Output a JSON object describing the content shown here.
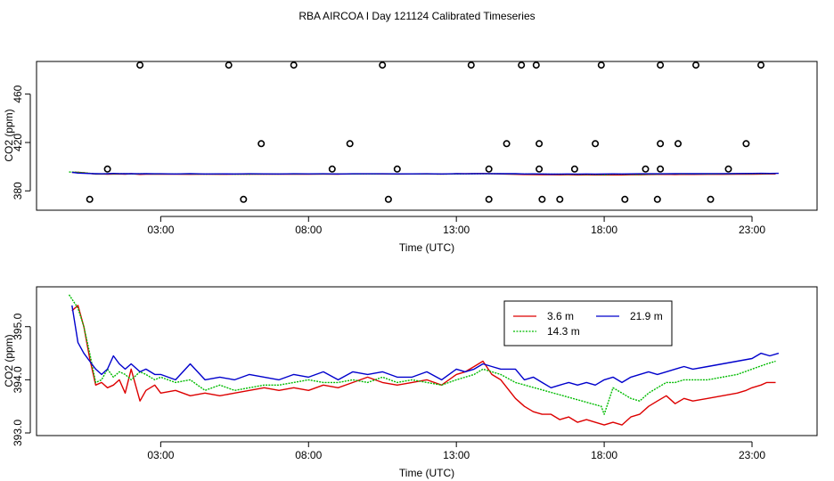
{
  "figure_title": "RBA AIRCOA I  Day 121124  Calibrated Timeseries",
  "colors": {
    "red": "#dd0000",
    "green": "#00bb00",
    "blue": "#0000cc",
    "axis": "#000000"
  },
  "chart_data": [
    {
      "type": "scatter+line",
      "name": "top-panel",
      "title": "",
      "xlabel": "Time (UTC)",
      "ylabel": "CO2 (ppm)",
      "xlim": [
        -1.2,
        25.2
      ],
      "ylim": [
        364,
        487
      ],
      "x_ticks": [
        3,
        8,
        13,
        18,
        23
      ],
      "x_tick_labels": [
        "03:00",
        "08:00",
        "13:00",
        "18:00",
        "23:00"
      ],
      "y_ticks": [
        380,
        420,
        460
      ],
      "y_tick_labels": [
        "380",
        "420",
        "460"
      ],
      "points": {
        "name": "calibration standards",
        "x": [
          0.6,
          1.2,
          2.3,
          5.3,
          7.5,
          10.5,
          13.5,
          15.2,
          15.7,
          6.4,
          9.4,
          14.7,
          15.8,
          17.7,
          19.9,
          20.5,
          22.8,
          8.8,
          11.0,
          14.1,
          15.8,
          17.0,
          19.4,
          19.9,
          22.2,
          5.8,
          10.7,
          14.1,
          15.9,
          16.5,
          18.7,
          19.8,
          21.6,
          17.9,
          19.9,
          21.1,
          23.3
        ],
        "y": [
          373,
          398,
          484,
          484,
          484,
          484,
          484,
          484,
          484,
          419,
          419,
          419,
          419,
          419,
          419,
          419,
          419,
          398,
          398,
          398,
          398,
          398,
          398,
          398,
          398,
          373,
          373,
          373,
          373,
          373,
          373,
          373,
          373,
          484,
          484,
          484,
          484
        ]
      },
      "series_ref": "bottom-panel"
    },
    {
      "type": "line",
      "name": "bottom-panel",
      "title": "",
      "xlabel": "Time (UTC)",
      "ylabel": "CO2 (ppm)",
      "xlim": [
        -1.2,
        25.2
      ],
      "ylim": [
        392.95,
        395.75
      ],
      "x_ticks": [
        3,
        8,
        13,
        18,
        23
      ],
      "x_tick_labels": [
        "03:00",
        "08:00",
        "13:00",
        "18:00",
        "23:00"
      ],
      "y_ticks": [
        393.0,
        394.0,
        395.0
      ],
      "y_tick_labels": [
        "393.0",
        "394.0",
        "395.0"
      ],
      "legend": {
        "position": "top-right",
        "entries": [
          "3.6 m",
          "14.3 m",
          "21.9 m"
        ]
      },
      "series": [
        {
          "name": "3.6 m",
          "color": "red",
          "x": [
            0.0,
            0.2,
            0.4,
            0.6,
            0.8,
            1.0,
            1.2,
            1.4,
            1.6,
            1.8,
            2.0,
            2.3,
            2.5,
            2.8,
            3.0,
            3.5,
            4.0,
            4.5,
            5.0,
            5.5,
            6.0,
            6.5,
            7.0,
            7.5,
            8.0,
            8.5,
            9.0,
            9.5,
            10.0,
            10.5,
            11.0,
            11.5,
            12.0,
            12.5,
            13.0,
            13.3,
            13.6,
            13.9,
            14.2,
            14.5,
            15.0,
            15.3,
            15.6,
            15.9,
            16.2,
            16.5,
            16.8,
            17.1,
            17.4,
            17.7,
            18.0,
            18.3,
            18.6,
            18.9,
            19.2,
            19.5,
            19.8,
            20.1,
            20.4,
            20.7,
            21.0,
            21.5,
            22.0,
            22.5,
            22.8,
            23.0,
            23.3,
            23.5,
            23.8
          ],
          "values": [
            395.3,
            395.4,
            395.0,
            394.4,
            393.9,
            393.95,
            393.85,
            393.9,
            394.0,
            393.75,
            394.2,
            393.6,
            393.8,
            393.9,
            393.75,
            393.8,
            393.7,
            393.75,
            393.7,
            393.75,
            393.8,
            393.85,
            393.8,
            393.85,
            393.8,
            393.9,
            393.85,
            393.95,
            394.05,
            393.95,
            393.9,
            393.95,
            394.0,
            393.9,
            394.1,
            394.15,
            394.25,
            394.35,
            394.1,
            394.0,
            393.65,
            393.5,
            393.4,
            393.35,
            393.35,
            393.25,
            393.3,
            393.2,
            393.25,
            393.2,
            393.15,
            393.2,
            393.15,
            393.3,
            393.35,
            393.5,
            393.6,
            393.7,
            393.55,
            393.65,
            393.6,
            393.65,
            393.7,
            393.75,
            393.8,
            393.85,
            393.9,
            393.95,
            393.95
          ]
        },
        {
          "name": "14.3 m",
          "color": "green",
          "x": [
            -0.1,
            0.2,
            0.4,
            0.6,
            0.8,
            1.0,
            1.2,
            1.4,
            1.6,
            1.8,
            2.0,
            2.3,
            2.5,
            2.8,
            3.0,
            3.5,
            4.0,
            4.5,
            5.0,
            5.5,
            6.0,
            6.5,
            7.0,
            7.5,
            8.0,
            8.5,
            9.0,
            9.5,
            10.0,
            10.5,
            11.0,
            11.5,
            12.0,
            12.5,
            13.0,
            13.3,
            13.6,
            13.9,
            14.2,
            14.5,
            15.0,
            17.9,
            18.0,
            18.3,
            18.6,
            18.9,
            19.2,
            19.5,
            19.8,
            20.1,
            20.4,
            20.7,
            21.0,
            21.5,
            22.0,
            22.5,
            23.0,
            23.5,
            23.8
          ],
          "values": [
            395.6,
            395.35,
            395.0,
            394.5,
            393.95,
            394.0,
            394.2,
            394.05,
            394.15,
            394.1,
            394.0,
            394.15,
            394.1,
            394.0,
            394.05,
            393.95,
            394.0,
            393.8,
            393.9,
            393.8,
            393.85,
            393.9,
            393.9,
            393.95,
            394.0,
            393.95,
            393.95,
            394.0,
            393.95,
            394.05,
            393.95,
            394.0,
            393.95,
            393.9,
            394.0,
            394.05,
            394.1,
            394.2,
            394.15,
            394.1,
            393.95,
            393.5,
            393.35,
            393.85,
            393.75,
            393.65,
            393.6,
            393.75,
            393.85,
            393.95,
            393.95,
            394.0,
            394.0,
            394.0,
            394.05,
            394.1,
            394.2,
            394.3,
            394.35
          ]
        },
        {
          "name": "21.9 m",
          "color": "blue",
          "x": [
            0.0,
            0.2,
            0.4,
            0.6,
            0.8,
            1.0,
            1.2,
            1.4,
            1.6,
            1.8,
            2.0,
            2.3,
            2.5,
            2.8,
            3.0,
            3.5,
            4.0,
            4.5,
            5.0,
            5.5,
            6.0,
            6.5,
            7.0,
            7.5,
            8.0,
            8.5,
            9.0,
            9.5,
            10.0,
            10.5,
            11.0,
            11.5,
            12.0,
            12.5,
            13.0,
            13.3,
            13.6,
            13.9,
            14.2,
            14.5,
            15.0,
            15.3,
            15.6,
            15.9,
            16.2,
            16.5,
            16.8,
            17.1,
            17.4,
            17.7,
            18.0,
            18.3,
            18.6,
            18.9,
            19.2,
            19.5,
            19.8,
            20.1,
            20.4,
            20.7,
            21.0,
            21.5,
            22.0,
            22.5,
            23.0,
            23.3,
            23.6,
            23.9
          ],
          "values": [
            395.4,
            394.7,
            394.5,
            394.35,
            394.2,
            394.1,
            394.2,
            394.45,
            394.3,
            394.2,
            394.3,
            394.15,
            394.2,
            394.1,
            394.1,
            394.0,
            394.3,
            394.0,
            394.05,
            394.0,
            394.1,
            394.05,
            394.0,
            394.1,
            394.05,
            394.15,
            394.0,
            394.15,
            394.1,
            394.15,
            394.05,
            394.05,
            394.15,
            394.0,
            394.2,
            394.15,
            394.2,
            394.3,
            394.25,
            394.2,
            394.2,
            394.0,
            394.05,
            393.95,
            393.85,
            393.9,
            393.95,
            393.9,
            393.95,
            393.9,
            394.0,
            394.05,
            393.95,
            394.05,
            394.1,
            394.15,
            394.1,
            394.15,
            394.2,
            394.25,
            394.2,
            394.25,
            394.3,
            394.35,
            394.4,
            394.5,
            394.45,
            394.5
          ]
        }
      ]
    }
  ]
}
